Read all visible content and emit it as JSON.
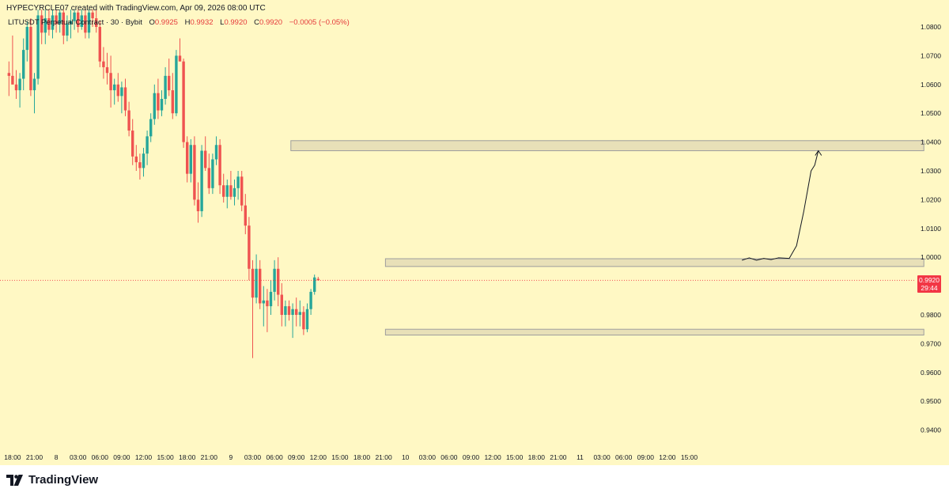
{
  "header": {
    "author_line": "HYPECYRCLE07 created with TradingView.com, Apr 09, 2026 08:00 UTC"
  },
  "legend": {
    "symbol": "LITUSDT Perpetual Contract · 30 · Bybit",
    "open_label": "O",
    "open": "0.9925",
    "high_label": "H",
    "high": "0.9932",
    "low_label": "L",
    "low": "0.9920",
    "close_label": "C",
    "close": "0.9920",
    "change": "−0.0005 (−0.05%)"
  },
  "current_price": {
    "price": "0.9920",
    "countdown": "29:44",
    "color": "#f23645"
  },
  "brand": {
    "name": "TradingView"
  },
  "colors": {
    "background": "#fff8c4",
    "up": "#26a69a",
    "down": "#ef5350",
    "zone_fill": "#e8e0b8",
    "zone_stroke": "#9e9e9e"
  },
  "chart_data": {
    "type": "candlestick",
    "ylim": [
      0.932,
      1.086
    ],
    "y_ticks": [
      "1.0800",
      "1.0700",
      "1.0600",
      "1.0500",
      "1.0400",
      "1.0300",
      "1.0200",
      "1.0100",
      "1.0000",
      "0.9800",
      "0.9700",
      "0.9600",
      "0.9500",
      "0.9400"
    ],
    "x_ticks": [
      {
        "i": 1.5,
        "label": "18:00"
      },
      {
        "i": 7.5,
        "label": "21:00"
      },
      {
        "i": 13.5,
        "label": "8"
      },
      {
        "i": 19.5,
        "label": "03:00"
      },
      {
        "i": 25.5,
        "label": "06:00"
      },
      {
        "i": 31.5,
        "label": "09:00"
      },
      {
        "i": 37.5,
        "label": "12:00"
      },
      {
        "i": 43.5,
        "label": "15:00"
      },
      {
        "i": 49.5,
        "label": "18:00"
      },
      {
        "i": 55.5,
        "label": "21:00"
      },
      {
        "i": 61.5,
        "label": "9"
      },
      {
        "i": 67.5,
        "label": "03:00"
      },
      {
        "i": 73.5,
        "label": "06:00"
      },
      {
        "i": 79.5,
        "label": "09:00"
      },
      {
        "i": 85.5,
        "label": "12:00"
      },
      {
        "i": 91.5,
        "label": "15:00"
      },
      {
        "i": 97.5,
        "label": "18:00"
      },
      {
        "i": 103.5,
        "label": "21:00"
      },
      {
        "i": 109.5,
        "label": "10"
      },
      {
        "i": 115.5,
        "label": "03:00"
      },
      {
        "i": 121.5,
        "label": "06:00"
      },
      {
        "i": 127.5,
        "label": "09:00"
      },
      {
        "i": 133.5,
        "label": "12:00"
      },
      {
        "i": 139.5,
        "label": "15:00"
      },
      {
        "i": 145.5,
        "label": "18:00"
      },
      {
        "i": 151.5,
        "label": "21:00"
      },
      {
        "i": 157.5,
        "label": "11"
      },
      {
        "i": 163.5,
        "label": "03:00"
      },
      {
        "i": 169.5,
        "label": "06:00"
      },
      {
        "i": 175.5,
        "label": "09:00"
      },
      {
        "i": 181.5,
        "label": "12:00"
      },
      {
        "i": 187.5,
        "label": "15:00"
      }
    ],
    "candles": [
      [
        1.064,
        1.068,
        1.056,
        1.063
      ],
      [
        1.063,
        1.077,
        1.06,
        1.06
      ],
      [
        1.06,
        1.065,
        1.055,
        1.058
      ],
      [
        1.058,
        1.064,
        1.052,
        1.062
      ],
      [
        1.062,
        1.076,
        1.058,
        1.072
      ],
      [
        1.072,
        1.082,
        1.068,
        1.08
      ],
      [
        1.08,
        1.083,
        1.056,
        1.058
      ],
      [
        1.058,
        1.064,
        1.05,
        1.062
      ],
      [
        1.062,
        1.086,
        1.06,
        1.084
      ],
      [
        1.084,
        1.086,
        1.074,
        1.078
      ],
      [
        1.078,
        1.086,
        1.074,
        1.083
      ],
      [
        1.083,
        1.086,
        1.077,
        1.079
      ],
      [
        1.079,
        1.086,
        1.076,
        1.084
      ],
      [
        1.084,
        1.086,
        1.078,
        1.081
      ],
      [
        1.081,
        1.086,
        1.078,
        1.085
      ],
      [
        1.085,
        1.086,
        1.074,
        1.077
      ],
      [
        1.077,
        1.084,
        1.075,
        1.081
      ],
      [
        1.081,
        1.086,
        1.076,
        1.082
      ],
      [
        1.082,
        1.086,
        1.079,
        1.085
      ],
      [
        1.085,
        1.086,
        1.078,
        1.08
      ],
      [
        1.08,
        1.086,
        1.079,
        1.084
      ],
      [
        1.084,
        1.086,
        1.076,
        1.078
      ],
      [
        1.078,
        1.086,
        1.076,
        1.085
      ],
      [
        1.085,
        1.086,
        1.08,
        1.083
      ],
      [
        1.083,
        1.086,
        1.078,
        1.08
      ],
      [
        1.08,
        1.082,
        1.066,
        1.068
      ],
      [
        1.068,
        1.073,
        1.062,
        1.066
      ],
      [
        1.066,
        1.071,
        1.06,
        1.064
      ],
      [
        1.064,
        1.07,
        1.052,
        1.058
      ],
      [
        1.058,
        1.062,
        1.053,
        1.06
      ],
      [
        1.06,
        1.064,
        1.054,
        1.056
      ],
      [
        1.056,
        1.061,
        1.05,
        1.059
      ],
      [
        1.059,
        1.062,
        1.049,
        1.051
      ],
      [
        1.051,
        1.054,
        1.042,
        1.044
      ],
      [
        1.044,
        1.048,
        1.032,
        1.035
      ],
      [
        1.035,
        1.039,
        1.03,
        1.033
      ],
      [
        1.033,
        1.036,
        1.027,
        1.031
      ],
      [
        1.031,
        1.038,
        1.028,
        1.036
      ],
      [
        1.036,
        1.044,
        1.032,
        1.042
      ],
      [
        1.042,
        1.05,
        1.04,
        1.048
      ],
      [
        1.048,
        1.06,
        1.046,
        1.057
      ],
      [
        1.057,
        1.062,
        1.048,
        1.051
      ],
      [
        1.051,
        1.058,
        1.049,
        1.055
      ],
      [
        1.055,
        1.066,
        1.053,
        1.063
      ],
      [
        1.063,
        1.069,
        1.056,
        1.058
      ],
      [
        1.058,
        1.064,
        1.048,
        1.05
      ],
      [
        1.05,
        1.072,
        1.049,
        1.07
      ],
      [
        1.07,
        1.076,
        1.068,
        1.068
      ],
      [
        1.068,
        1.069,
        1.038,
        1.04
      ],
      [
        1.04,
        1.042,
        1.026,
        1.029
      ],
      [
        1.029,
        1.041,
        1.026,
        1.039
      ],
      [
        1.039,
        1.042,
        1.018,
        1.02
      ],
      [
        1.02,
        1.026,
        1.012,
        1.016
      ],
      [
        1.016,
        1.039,
        1.014,
        1.037
      ],
      [
        1.037,
        1.042,
        1.03,
        1.031
      ],
      [
        1.031,
        1.036,
        1.022,
        1.024
      ],
      [
        1.024,
        1.036,
        1.022,
        1.034
      ],
      [
        1.034,
        1.042,
        1.032,
        1.039
      ],
      [
        1.039,
        1.041,
        1.022,
        1.025
      ],
      [
        1.025,
        1.029,
        1.019,
        1.021
      ],
      [
        1.021,
        1.027,
        1.017,
        1.025
      ],
      [
        1.025,
        1.03,
        1.02,
        1.021
      ],
      [
        1.021,
        1.027,
        1.018,
        1.024
      ],
      [
        1.024,
        1.03,
        1.02,
        1.028
      ],
      [
        1.028,
        1.03,
        1.016,
        1.018
      ],
      [
        1.018,
        1.022,
        1.008,
        1.011
      ],
      [
        1.011,
        1.014,
        0.992,
        0.996
      ],
      [
        0.996,
        0.999,
        0.965,
        0.986
      ],
      [
        0.986,
        1.001,
        0.984,
        0.996
      ],
      [
        0.996,
        0.999,
        0.982,
        0.984
      ],
      [
        0.984,
        0.99,
        0.976,
        0.985
      ],
      [
        0.985,
        0.989,
        0.974,
        0.983
      ],
      [
        0.983,
        0.992,
        0.98,
        0.988
      ],
      [
        0.988,
        0.999,
        0.985,
        0.996
      ],
      [
        0.996,
        1.0,
        0.983,
        0.987
      ],
      [
        0.987,
        0.991,
        0.976,
        0.98
      ],
      [
        0.98,
        0.985,
        0.976,
        0.983
      ],
      [
        0.983,
        0.985,
        0.978,
        0.98
      ],
      [
        0.98,
        0.984,
        0.972,
        0.982
      ],
      [
        0.982,
        0.986,
        0.976,
        0.98
      ],
      [
        0.98,
        0.985,
        0.976,
        0.981
      ],
      [
        0.981,
        0.983,
        0.973,
        0.975
      ],
      [
        0.975,
        0.984,
        0.974,
        0.982
      ],
      [
        0.982,
        0.989,
        0.98,
        0.988
      ],
      [
        0.988,
        0.994,
        0.987,
        0.993
      ],
      [
        0.9925,
        0.9932,
        0.992,
        0.992
      ]
    ],
    "zones": [
      {
        "x_from": 78,
        "x_to": 252,
        "y_low": 1.037,
        "y_high": 1.0405
      },
      {
        "x_from": 104,
        "x_to": 252,
        "y_low": 0.9968,
        "y_high": 0.9995
      },
      {
        "x_from": 104,
        "x_to": 252,
        "y_low": 0.973,
        "y_high": 0.975
      }
    ],
    "projection": [
      [
        202,
        0.999
      ],
      [
        204,
        0.9998
      ],
      [
        206,
        0.999
      ],
      [
        208,
        0.9996
      ],
      [
        210,
        0.9992
      ],
      [
        212,
        0.9998
      ],
      [
        215,
        0.9996
      ],
      [
        217,
        1.004
      ],
      [
        219,
        1.016
      ],
      [
        220,
        1.023
      ],
      [
        221,
        1.03
      ],
      [
        222,
        1.032
      ],
      [
        223,
        1.037
      ]
    ]
  }
}
